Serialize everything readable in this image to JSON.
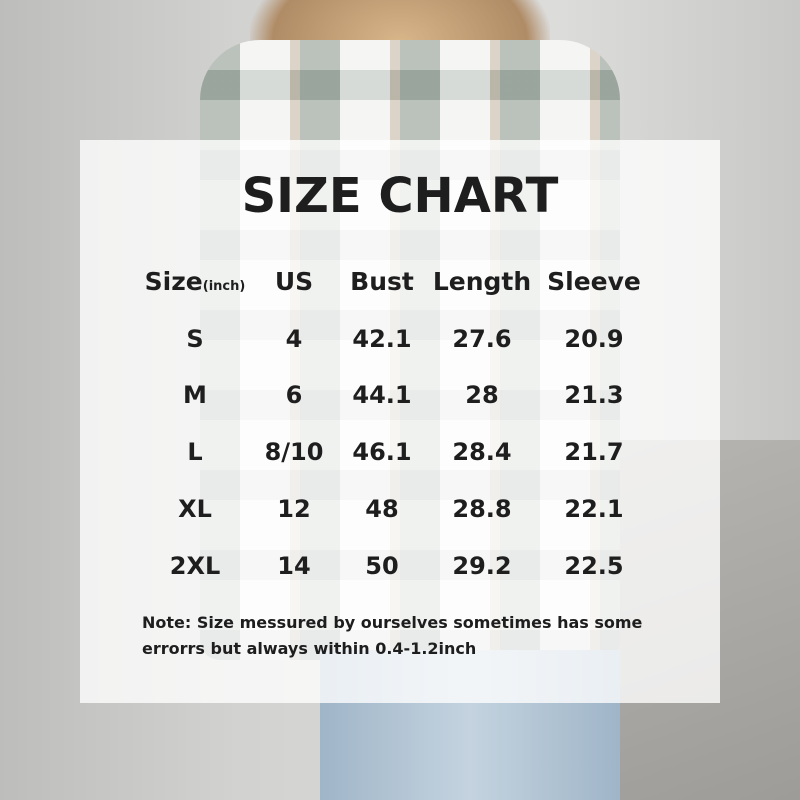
{
  "title": "SIZE CHART",
  "headers": {
    "size": "Size",
    "size_unit": "(inch)",
    "us": "US",
    "bust": "Bust",
    "length": "Length",
    "sleeve": "Sleeve"
  },
  "rows": [
    {
      "size": "S",
      "us": "4",
      "bust": "42.1",
      "length": "27.6",
      "sleeve": "20.9"
    },
    {
      "size": "M",
      "us": "6",
      "bust": "44.1",
      "length": "28",
      "sleeve": "21.3"
    },
    {
      "size": "L",
      "us": "8/10",
      "bust": "46.1",
      "length": "28.4",
      "sleeve": "21.7"
    },
    {
      "size": "XL",
      "us": "12",
      "bust": "48",
      "length": "28.8",
      "sleeve": "22.1"
    },
    {
      "size": "2XL",
      "us": "14",
      "bust": "50",
      "length": "29.2",
      "sleeve": "22.5"
    }
  ],
  "note": {
    "line1": "Note:  Size messured by ourselves sometimes has some",
    "line2": "errorrs but always within 0.4-1.2inch"
  }
}
